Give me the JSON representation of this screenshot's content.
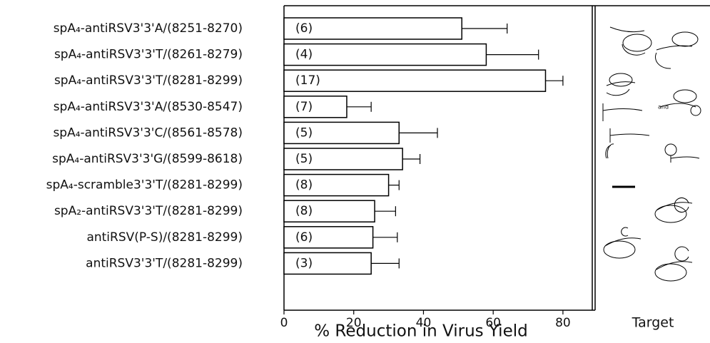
{
  "chart_data": {
    "type": "bar",
    "orientation": "horizontal",
    "x_label": "% Reduction in Virus Yield",
    "right_panel_label": "Target",
    "target_annotation": "and",
    "categories": [
      "spA₄-antiRSV3'3'A/(8251-8270)",
      "spA₄-antiRSV3'3'T/(8261-8279)",
      "spA₄-antiRSV3'3'T/(8281-8299)",
      "spA₄-antiRSV3'3'A/(8530-8547)",
      "spA₄-antiRSV3'3'C/(8561-8578)",
      "spA₄-antiRSV3'3'G/(8599-8618)",
      "spA₄-scramble3'3'T/(8281-8299)",
      "spA₂-antiRSV3'3'T/(8281-8299)",
      "antiRSV(P-S)/(8281-8299)",
      "antiRSV3'3'T/(8281-8299)"
    ],
    "values": [
      51,
      58,
      75,
      18,
      33,
      34,
      30,
      26,
      25.5,
      25
    ],
    "errors": [
      13,
      15,
      5,
      7,
      11,
      5,
      3,
      6,
      7,
      8
    ],
    "bar_labels": [
      "(6)",
      "(4)",
      "(17)",
      "(7)",
      "(5)",
      "(5)",
      "(8)",
      "(8)",
      "(6)",
      "(3)"
    ],
    "color": "#ffffff",
    "xlim": [
      0,
      88
    ],
    "xticks": [
      0,
      20,
      40,
      60,
      80
    ]
  }
}
